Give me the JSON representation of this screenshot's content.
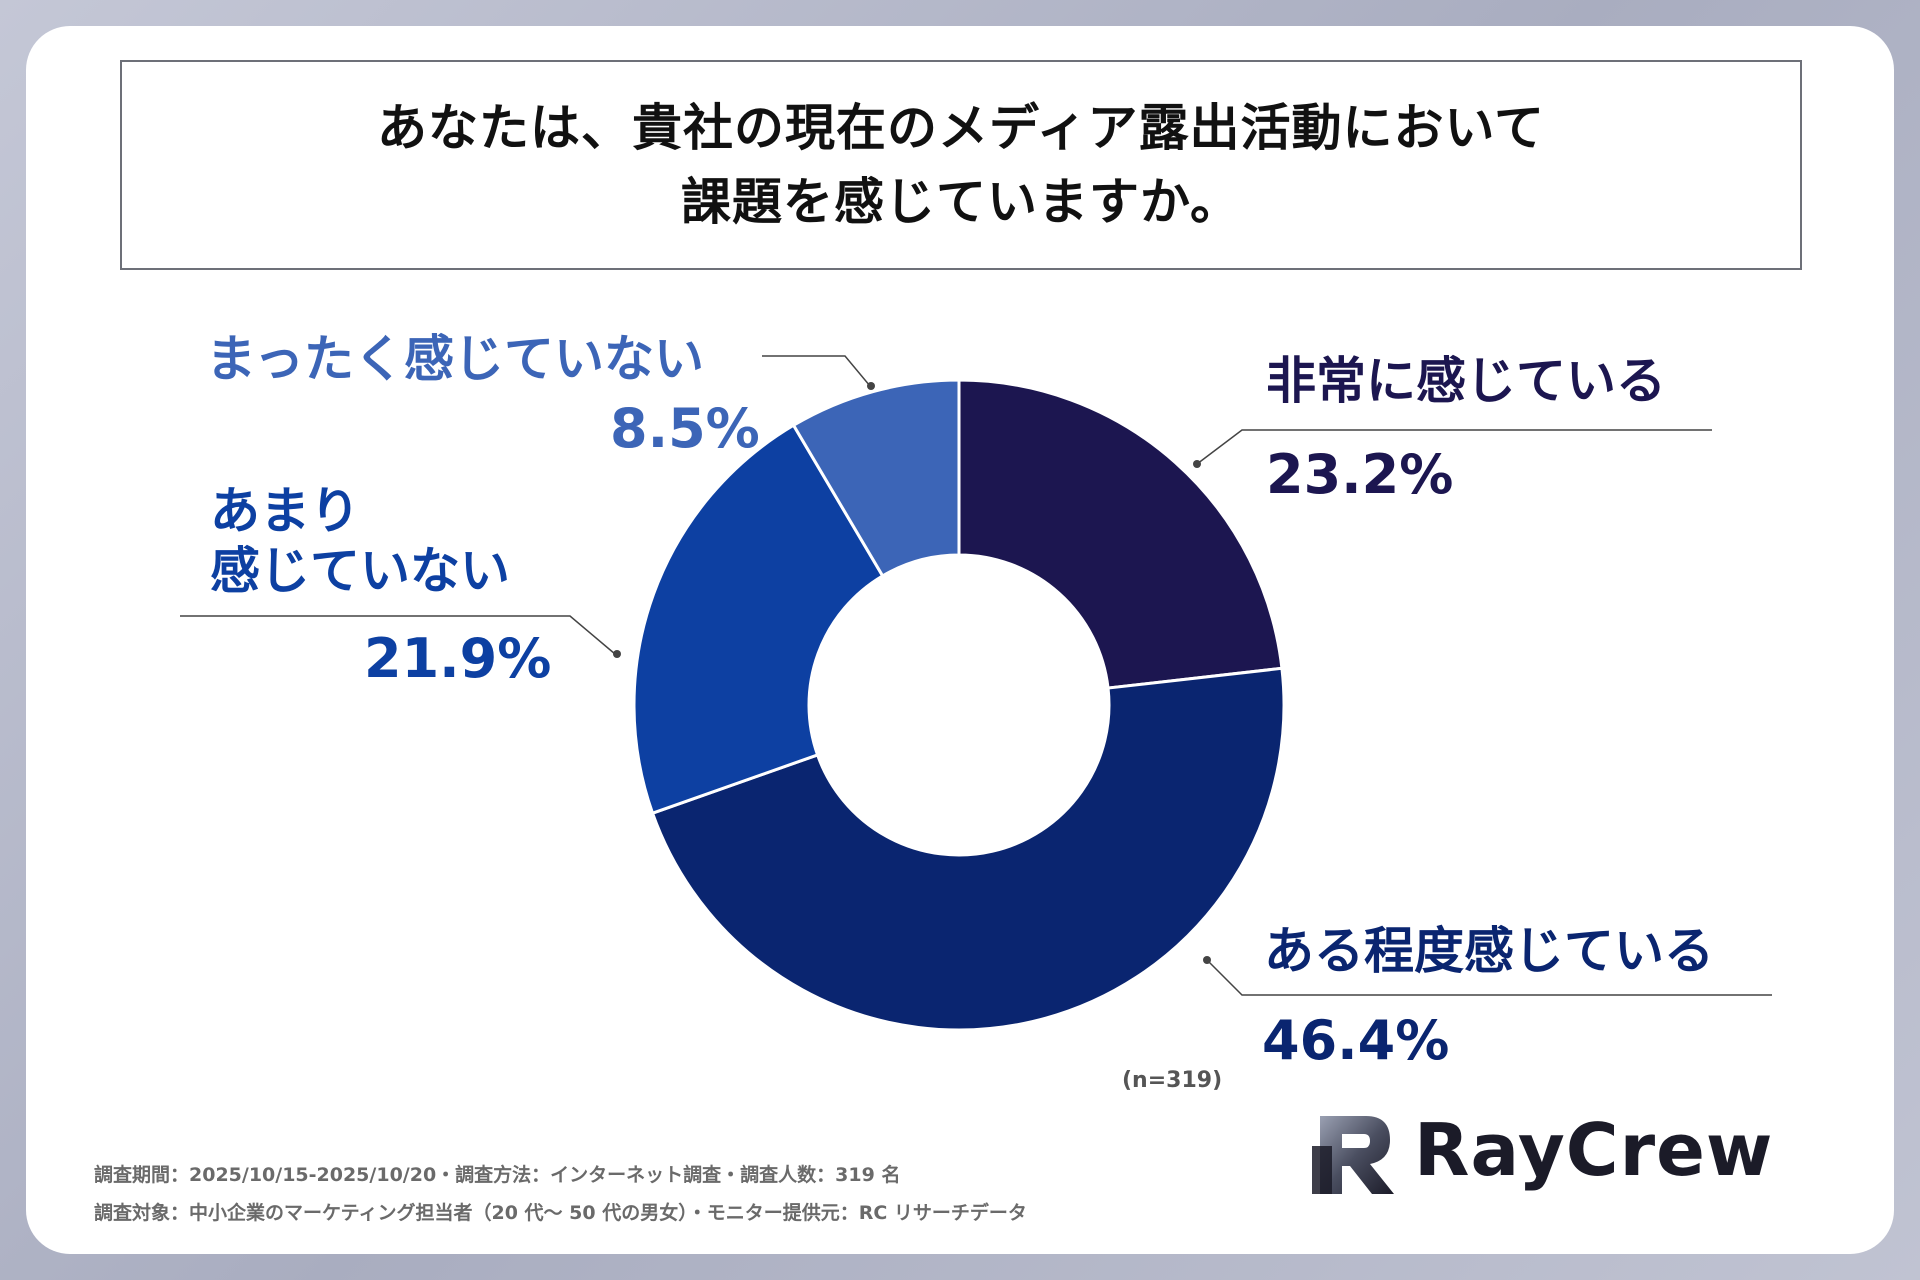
{
  "title": {
    "line1": "あなたは、貴社の現在のメディア露出活動において",
    "line2": "課題を感じていますか。"
  },
  "chart_data": {
    "type": "pie",
    "donut": true,
    "title": "あなたは、貴社の現在のメディア露出活動において課題を感じていますか。",
    "slices": [
      {
        "label": "非常に感じている",
        "value": 23.2,
        "value_label": "23.2%",
        "color": "#1c1650"
      },
      {
        "label": "ある程度感じている",
        "value": 46.4,
        "value_label": "46.4%",
        "color": "#0a2570"
      },
      {
        "label": "あまり感じていない",
        "label_line1": "あまり",
        "label_line2": "感じていない",
        "value": 21.9,
        "value_label": "21.9%",
        "color": "#0d40a2"
      },
      {
        "label": "まったく感じていない",
        "value": 8.5,
        "value_label": "8.5%",
        "color": "#3c65b7"
      }
    ],
    "n_note": "(n=319)"
  },
  "footer": {
    "line1": "調査期間：2025/10/15-2025/10/20・調査方法：インターネット調査・調査人数：319 名",
    "line2": "調査対象：中小企業のマーケティング担当者（20 代～ 50 代の男女）・モニター提供元：RC リサーチデータ"
  },
  "logo": {
    "text": "RayCrew"
  }
}
